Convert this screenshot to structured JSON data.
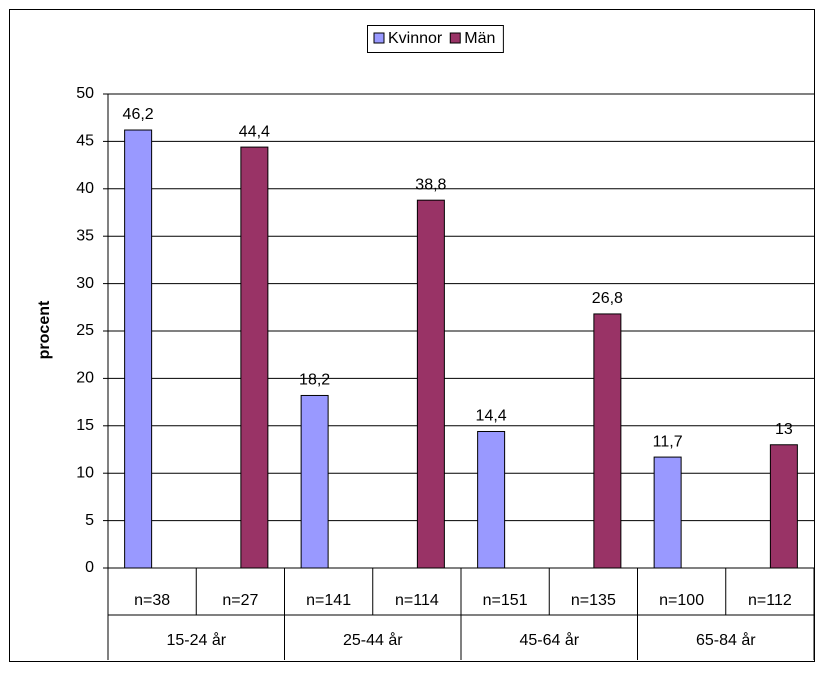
{
  "chart_data": {
    "type": "bar",
    "y_label": "procent",
    "categories": [
      "n=38",
      "n=27",
      "n=141",
      "n=114",
      "n=151",
      "n=135",
      "n=100",
      "n=112"
    ],
    "groups": [
      "15-24 år",
      "25-44 år",
      "45-64 år",
      "65-84 år"
    ],
    "series": [
      {
        "name": "Kvinnor",
        "color": "#9999ff",
        "values": [
          46.2,
          null,
          18.2,
          null,
          14.4,
          null,
          11.7,
          null
        ],
        "value_labels": [
          "46,2",
          null,
          "18,2",
          null,
          "14,4",
          null,
          "11,7",
          null
        ]
      },
      {
        "name": "Män",
        "color": "#993366",
        "values": [
          null,
          44.4,
          null,
          38.8,
          null,
          26.8,
          null,
          13
        ],
        "value_labels": [
          null,
          "44,4",
          null,
          "38,8",
          null,
          "26,8",
          null,
          "13"
        ]
      }
    ],
    "ylim": [
      0,
      50
    ],
    "yticks": [
      0,
      5,
      10,
      15,
      20,
      25,
      30,
      35,
      40,
      45,
      50
    ],
    "grid": true,
    "legend": "top"
  }
}
